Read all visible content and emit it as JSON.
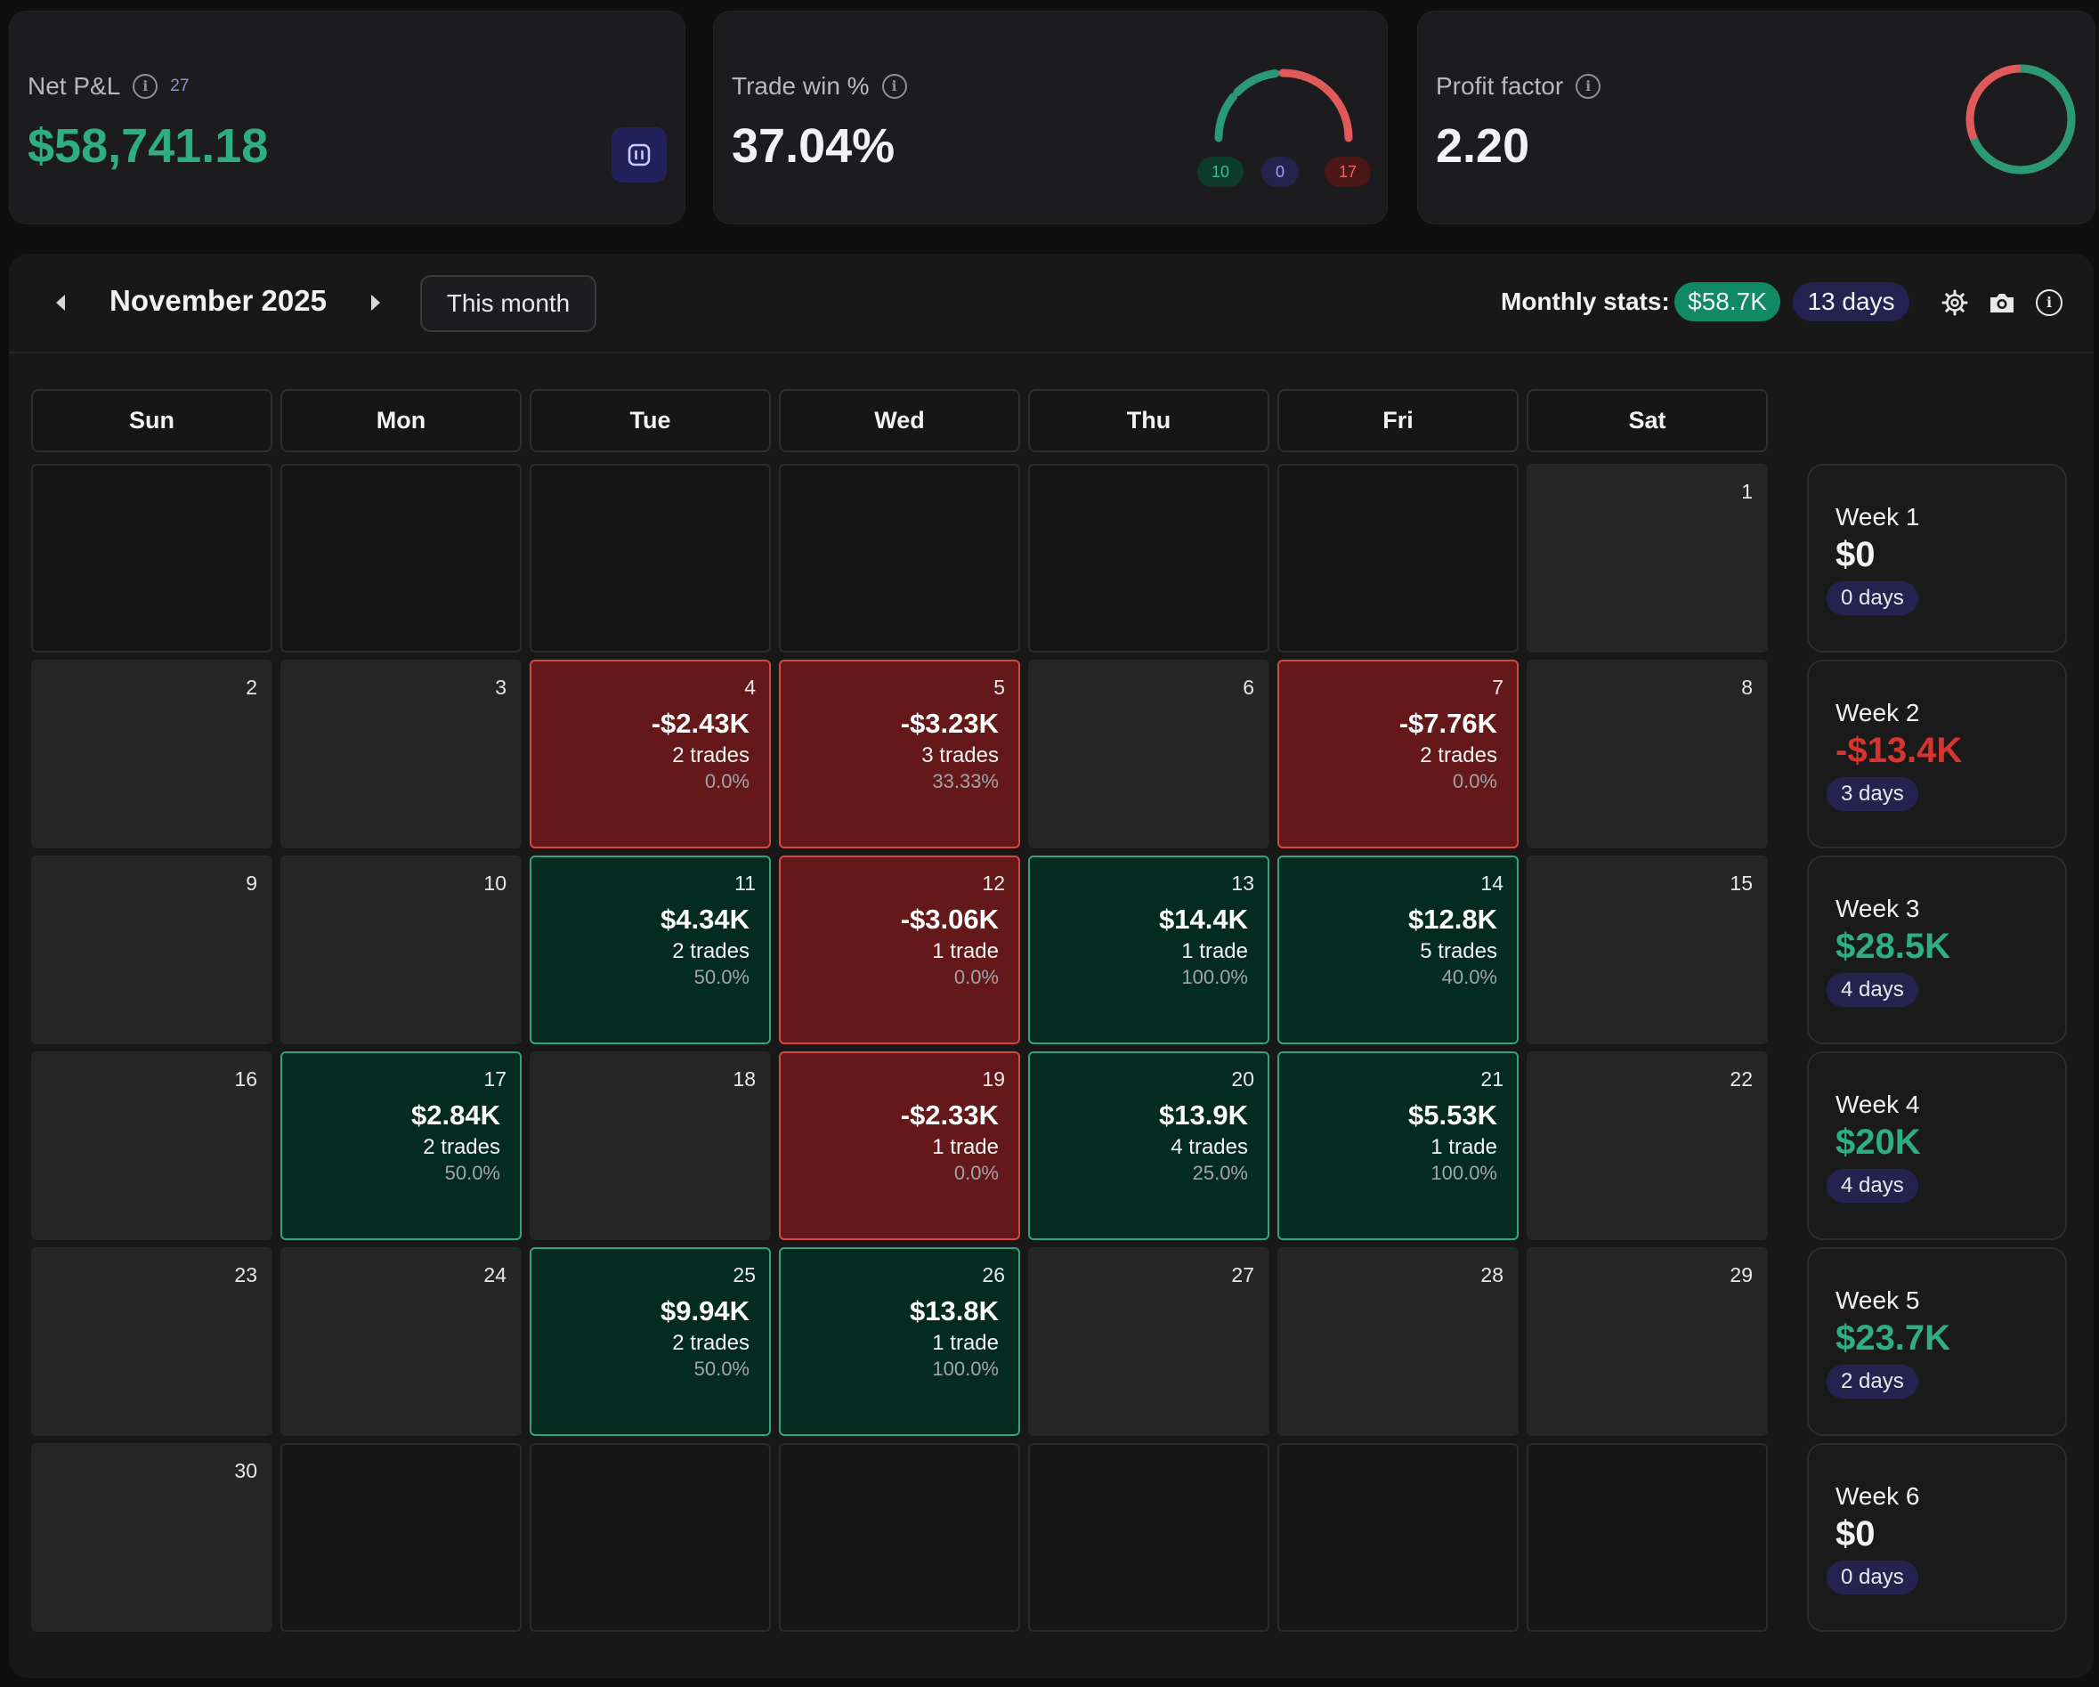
{
  "stats": {
    "net_pnl": {
      "label": "Net P&L",
      "count": "27",
      "value": "$58,741.18"
    },
    "trade_win": {
      "label": "Trade win %",
      "value": "37.04%",
      "wins": "10",
      "breakeven": "0",
      "losses": "17"
    },
    "profit_factor": {
      "label": "Profit factor",
      "value": "2.20"
    }
  },
  "colors": {
    "win": "#2fae83",
    "loss": "#d6473f",
    "accent": "#25224f"
  },
  "calendar": {
    "month_title": "November 2025",
    "this_month_label": "This month",
    "monthly_stats_label": "Monthly stats:",
    "monthly_pnl": "$58.7K",
    "monthly_days": "13 days",
    "weekdays": [
      "Sun",
      "Mon",
      "Tue",
      "Wed",
      "Thu",
      "Fri",
      "Sat"
    ],
    "days": [
      {
        "date": "1"
      },
      {
        "date": "2"
      },
      {
        "date": "3"
      },
      {
        "date": "4",
        "pnl": "-$2.43K",
        "trades": "2 trades",
        "winrate": "0.0%",
        "result": "loss"
      },
      {
        "date": "5",
        "pnl": "-$3.23K",
        "trades": "3 trades",
        "winrate": "33.33%",
        "result": "loss"
      },
      {
        "date": "6"
      },
      {
        "date": "7",
        "pnl": "-$7.76K",
        "trades": "2 trades",
        "winrate": "0.0%",
        "result": "loss"
      },
      {
        "date": "8"
      },
      {
        "date": "9"
      },
      {
        "date": "10"
      },
      {
        "date": "11",
        "pnl": "$4.34K",
        "trades": "2 trades",
        "winrate": "50.0%",
        "result": "win"
      },
      {
        "date": "12",
        "pnl": "-$3.06K",
        "trades": "1 trade",
        "winrate": "0.0%",
        "result": "loss"
      },
      {
        "date": "13",
        "pnl": "$14.4K",
        "trades": "1 trade",
        "winrate": "100.0%",
        "result": "win"
      },
      {
        "date": "14",
        "pnl": "$12.8K",
        "trades": "5 trades",
        "winrate": "40.0%",
        "result": "win"
      },
      {
        "date": "15"
      },
      {
        "date": "16"
      },
      {
        "date": "17",
        "pnl": "$2.84K",
        "trades": "2 trades",
        "winrate": "50.0%",
        "result": "win"
      },
      {
        "date": "18"
      },
      {
        "date": "19",
        "pnl": "-$2.33K",
        "trades": "1 trade",
        "winrate": "0.0%",
        "result": "loss"
      },
      {
        "date": "20",
        "pnl": "$13.9K",
        "trades": "4 trades",
        "winrate": "25.0%",
        "result": "win"
      },
      {
        "date": "21",
        "pnl": "$5.53K",
        "trades": "1 trade",
        "winrate": "100.0%",
        "result": "win"
      },
      {
        "date": "22"
      },
      {
        "date": "23"
      },
      {
        "date": "24"
      },
      {
        "date": "25",
        "pnl": "$9.94K",
        "trades": "2 trades",
        "winrate": "50.0%",
        "result": "win"
      },
      {
        "date": "26",
        "pnl": "$13.8K",
        "trades": "1 trade",
        "winrate": "100.0%",
        "result": "win"
      },
      {
        "date": "27"
      },
      {
        "date": "28"
      },
      {
        "date": "29"
      },
      {
        "date": "30"
      }
    ],
    "weeks": [
      {
        "label": "Week 1",
        "pnl": "$0",
        "days": "0 days",
        "result": "neutral"
      },
      {
        "label": "Week 2",
        "pnl": "-$13.4K",
        "days": "3 days",
        "result": "loss"
      },
      {
        "label": "Week 3",
        "pnl": "$28.5K",
        "days": "4 days",
        "result": "win"
      },
      {
        "label": "Week 4",
        "pnl": "$20K",
        "days": "4 days",
        "result": "win"
      },
      {
        "label": "Week 5",
        "pnl": "$23.7K",
        "days": "2 days",
        "result": "win"
      },
      {
        "label": "Week 6",
        "pnl": "$0",
        "days": "0 days",
        "result": "neutral"
      }
    ]
  }
}
